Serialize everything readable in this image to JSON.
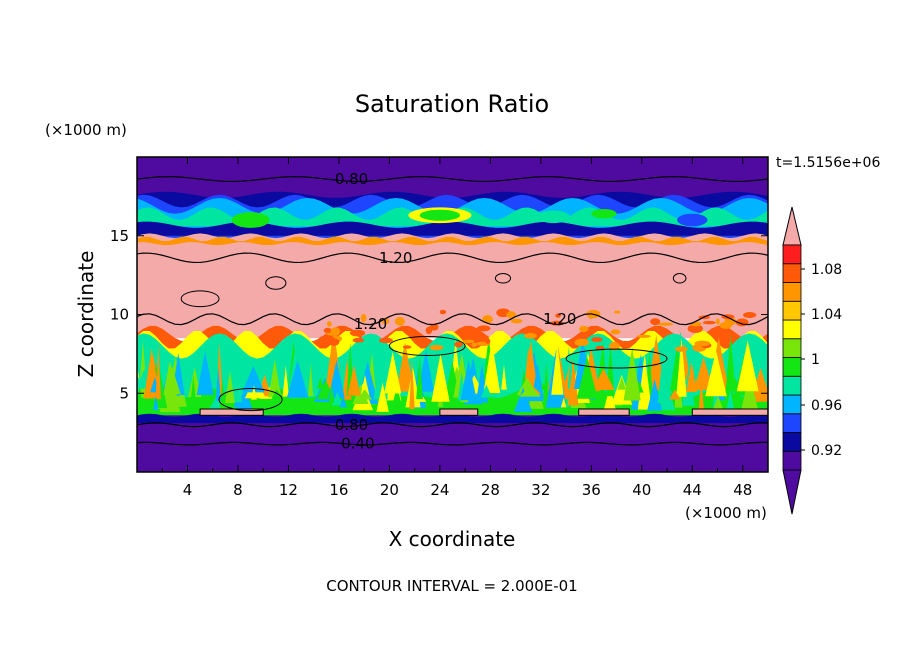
{
  "chart_data": {
    "type": "filled-contour",
    "title": "Saturation Ratio",
    "xlabel": "X coordinate",
    "ylabel": "Z coordinate",
    "x_unit": "(×1000 m)",
    "y_unit": "(×1000 m)",
    "time_label": "t=1.5156e+06",
    "footer": "CONTOUR INTERVAL = 2.000E-01",
    "xlim": [
      0,
      50
    ],
    "ylim": [
      0,
      20
    ],
    "x_ticks": [
      4,
      8,
      12,
      16,
      20,
      24,
      28,
      32,
      36,
      40,
      44,
      48
    ],
    "y_ticks": [
      5,
      10,
      15
    ],
    "colorbar": {
      "colors": [
        "#4f0aa0",
        "#0a0aa0",
        "#1e46ff",
        "#00b4ff",
        "#00e6a0",
        "#14e614",
        "#78e60a",
        "#ffff00",
        "#ffc800",
        "#ff9600",
        "#ff5a0a",
        "#ff1e1e",
        "#f5aaaa"
      ],
      "labels": [
        "0.92",
        "0.96",
        "1",
        "1.04",
        "1.08"
      ],
      "label_values": [
        0.92,
        0.96,
        1.0,
        1.04,
        1.08
      ]
    },
    "contour_labels": [
      {
        "text": "0.80",
        "x": 17,
        "z": 18.6
      },
      {
        "text": "1.20",
        "x": 20.5,
        "z": 13.6
      },
      {
        "text": "1.20",
        "x": 18.5,
        "z": 9.4
      },
      {
        "text": "1.20",
        "x": 33.5,
        "z": 9.7
      },
      {
        "text": "0.80",
        "x": 17,
        "z": 3.0
      },
      {
        "text": "0.40",
        "x": 17.5,
        "z": 1.8
      }
    ],
    "bands": [
      {
        "name": "upper-dry-layer",
        "z_bottom": 17.3,
        "z_top": 20.0,
        "level": "0.8"
      },
      {
        "name": "upper-transition-layer",
        "z_bottom": 14.0,
        "z_top": 17.3,
        "level": "0.9-1.0"
      },
      {
        "name": "supersaturated-layer",
        "z_bottom": 8.5,
        "z_top": 14.0,
        "level": ">1.1"
      },
      {
        "name": "cloud-mixing-layer",
        "z_bottom": 3.6,
        "z_top": 8.5,
        "level": "0.96-1.06"
      },
      {
        "name": "lower-dry-layer",
        "z_bottom": 0.0,
        "z_top": 3.6,
        "level": "<0.9"
      }
    ]
  }
}
